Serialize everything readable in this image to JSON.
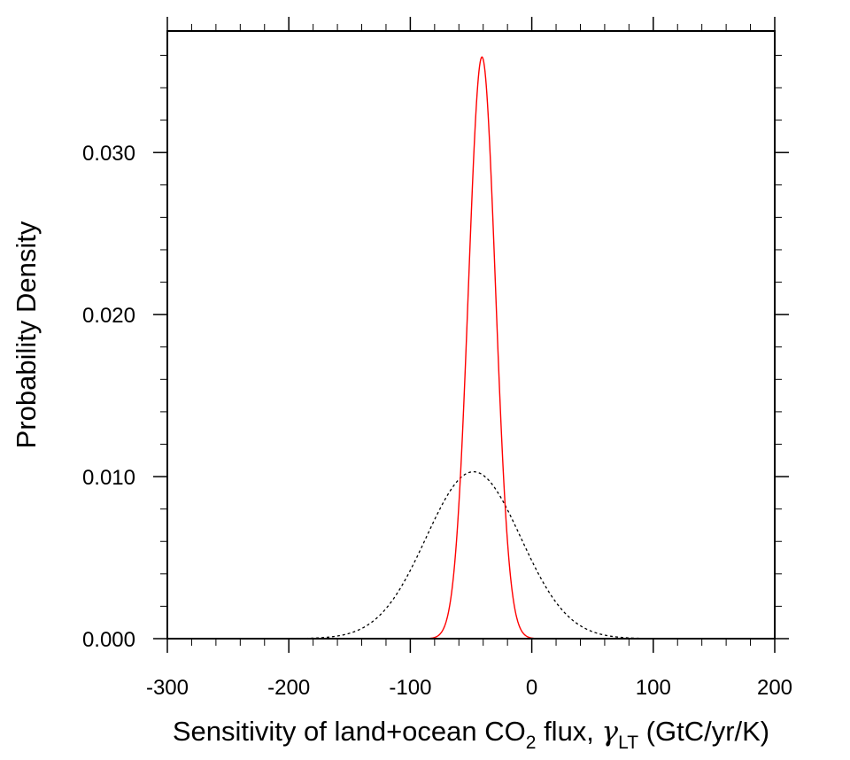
{
  "chart_data": {
    "type": "line",
    "title": "",
    "xlabel": {
      "prefix": "Sensitivity of land+ocean CO",
      "co2_subscript": "2",
      "middle": " flux, ",
      "symbol": "γ",
      "symbol_subscript": "LT",
      "suffix": " (GtC/yr/K)"
    },
    "ylabel": "Probability Density",
    "xlim": [
      -300,
      200
    ],
    "ylim": [
      0,
      0.0375
    ],
    "xticks": [
      -300,
      -200,
      -100,
      0,
      100,
      200
    ],
    "xtick_labels": [
      "-300",
      "-200",
      "-100",
      "0",
      "100",
      "200"
    ],
    "yticks": [
      0,
      0.01,
      0.02,
      0.03
    ],
    "ytick_labels": [
      "0.000",
      "0.010",
      "0.020",
      "0.030"
    ],
    "x_minor_step": 20,
    "y_minor_step": 0.002,
    "grid": false,
    "series": [
      {
        "style": "dashed",
        "color": "#000000",
        "distribution": "normal",
        "mean": -48,
        "sd": 38.9,
        "peak_density": 0.0103
      },
      {
        "style": "solid",
        "color": "#ff0000",
        "distribution": "normal",
        "mean": -41,
        "sd": 11.1,
        "peak_density": 0.0359
      }
    ]
  }
}
